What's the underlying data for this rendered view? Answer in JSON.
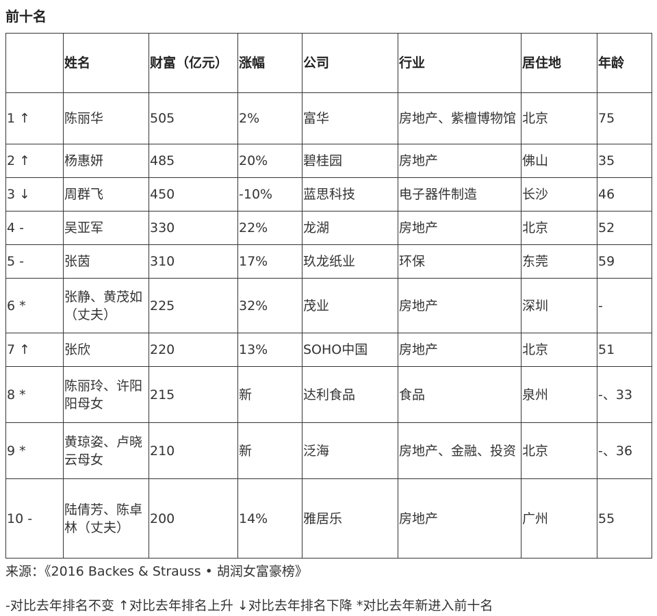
{
  "title": "前十名",
  "table": {
    "headers": [
      "",
      "姓名",
      "财富（亿元）",
      "涨幅",
      "公司",
      "行业",
      "居住地",
      "年龄"
    ],
    "rows": [
      [
        "1 ↑",
        "陈丽华",
        "505",
        "2%",
        "富华",
        "房地产、紫檀博物馆",
        "北京",
        "75"
      ],
      [
        "2 ↑",
        "杨惠妍",
        "485",
        "20%",
        "碧桂园",
        "房地产",
        "佛山",
        "35"
      ],
      [
        "3 ↓",
        "周群飞",
        "450",
        "-10%",
        "蓝思科技",
        "电子器件制造",
        "长沙",
        "46"
      ],
      [
        "4 -",
        "吴亚军",
        "330",
        "22%",
        "龙湖",
        "房地产",
        "北京",
        "52"
      ],
      [
        "5 -",
        "张茵",
        "310",
        "17%",
        "玖龙纸业",
        "环保",
        "东莞",
        "59"
      ],
      [
        "6 *",
        "张静、黄茂如（丈夫）",
        "225",
        "32%",
        "茂业",
        "房地产",
        "深圳",
        "-"
      ],
      [
        "7 ↑",
        "张欣",
        "220",
        "13%",
        "SOHO中国",
        "房地产",
        "北京",
        "51"
      ],
      [
        "8 *",
        "陈丽玲、许阳阳母女",
        "215",
        "新",
        "达利食品",
        "食品",
        "泉州",
        "-、33"
      ],
      [
        "9 *",
        "黄琼姿、卢晓云母女",
        "210",
        "新",
        "泛海",
        "房地产、金融、投资",
        "北京",
        "-、36"
      ],
      [
        "10 -",
        "陆倩芳、陈卓林（丈夫）",
        "200",
        "14%",
        "雅居乐",
        "房地产",
        "广州",
        "55"
      ]
    ]
  },
  "source": "来源：《2016 Backes & Strauss • 胡润女富豪榜》",
  "legend": "-对比去年排名不变 ↑对比去年排名上升 ↓对比去年排名下降 *对比去年新进入前十名"
}
